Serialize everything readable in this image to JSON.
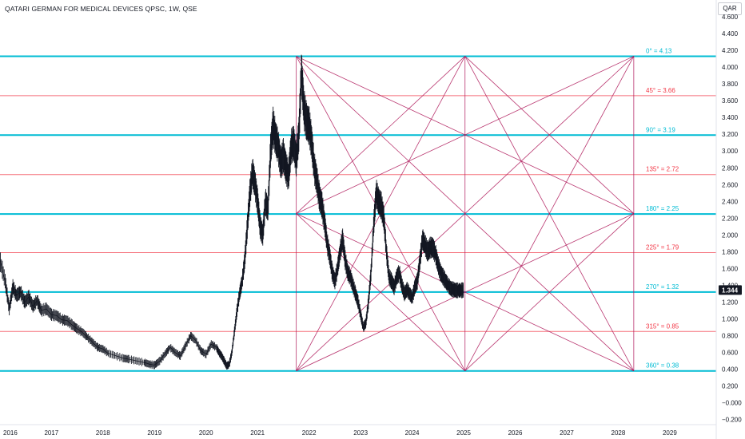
{
  "header": {
    "title": "QATARI GERMAN FOR MEDICAL DEVICES QPSC, 1W, QSE",
    "currency": "QAR"
  },
  "colors": {
    "background": "#ffffff",
    "price_bars": "#131722",
    "major_level": "#00bcd4",
    "minor_level": "#f23645",
    "fan_lines": "#ad1457",
    "grid_label": "#131722",
    "price_tag_bg": "#131722",
    "price_tag_text": "#ffffff"
  },
  "chart_data": {
    "type": "line",
    "title": "QATARI GERMAN FOR MEDICAL DEVICES QPSC, 1W, QSE",
    "xlabel": "",
    "ylabel": "",
    "x_ticks": [
      "2016",
      "2017",
      "2018",
      "2019",
      "2020",
      "2021",
      "2022",
      "2023",
      "2024",
      "2025",
      "2026",
      "2027",
      "2028",
      "2029"
    ],
    "y_ticks": [
      "4.600",
      "4.400",
      "4.200",
      "4.000",
      "3.800",
      "3.600",
      "3.400",
      "3.200",
      "3.000",
      "2.800",
      "2.600",
      "2.400",
      "2.200",
      "2.000",
      "1.800",
      "1.600",
      "1.400",
      "1.200",
      "1.000",
      "0.800",
      "0.600",
      "0.400",
      "0.200",
      "−0.000",
      "−0.200"
    ],
    "xlim": [
      2016.0,
      2029.9
    ],
    "ylim": [
      -0.26,
      4.8
    ],
    "grid": false,
    "last_price": "1.344",
    "gann_levels": [
      {
        "label": "0° = 4.13",
        "value": 4.13,
        "major": true
      },
      {
        "label": "45° = 3.66",
        "value": 3.66,
        "major": false
      },
      {
        "label": "90° = 3.19",
        "value": 3.19,
        "major": true
      },
      {
        "label": "135° = 2.72",
        "value": 2.72,
        "major": false
      },
      {
        "label": "180° = 2.25",
        "value": 2.25,
        "major": true
      },
      {
        "label": "225° = 1.79",
        "value": 1.79,
        "major": false
      },
      {
        "label": "270° = 1.32",
        "value": 1.32,
        "major": true
      },
      {
        "label": "315° = 0.85",
        "value": 0.85,
        "major": false
      },
      {
        "label": "360° = 0.38",
        "value": 0.38,
        "major": true
      }
    ],
    "gann_box": {
      "x_start": 2021.75,
      "x_end": 2028.3,
      "y_low": 0.38,
      "y_high": 4.13
    },
    "series": [
      {
        "type": "line",
        "x": [
          2015.99,
          2016.1,
          2016.18,
          2016.25,
          2016.32,
          2016.4,
          2016.48,
          2016.56,
          2016.64,
          2016.72,
          2016.8,
          2016.9,
          2017.0,
          2017.1,
          2017.2,
          2017.3,
          2017.4,
          2017.5,
          2017.6,
          2017.7,
          2017.8,
          2017.9,
          2018.0,
          2018.1,
          2018.25,
          2018.4,
          2018.5,
          2018.65,
          2018.8,
          2018.9,
          2019.0,
          2019.1,
          2019.2,
          2019.3,
          2019.4,
          2019.5,
          2019.6,
          2019.7,
          2019.8,
          2019.9,
          2020.0,
          2020.1,
          2020.2,
          2020.25,
          2020.3,
          2020.35,
          2020.4,
          2020.45,
          2020.5,
          2020.55,
          2020.6,
          2020.65,
          2020.7,
          2020.75,
          2020.8,
          2020.85,
          2020.9,
          2020.95,
          2021.0,
          2021.05,
          2021.1,
          2021.15,
          2021.2,
          2021.25,
          2021.3,
          2021.35,
          2021.4,
          2021.45,
          2021.5,
          2021.55,
          2021.6,
          2021.65,
          2021.7,
          2021.75,
          2021.8,
          2021.85,
          2021.9,
          2021.95,
          2022.0,
          2022.05,
          2022.1,
          2022.15,
          2022.2,
          2022.25,
          2022.3,
          2022.35,
          2022.4,
          2022.45,
          2022.5,
          2022.55,
          2022.6,
          2022.65,
          2022.7,
          2022.75,
          2022.8,
          2022.85,
          2022.9,
          2022.95,
          2023.0,
          2023.05,
          2023.1,
          2023.15,
          2023.2,
          2023.25,
          2023.3,
          2023.35,
          2023.4,
          2023.45,
          2023.5,
          2023.55,
          2023.6,
          2023.65,
          2023.7,
          2023.75,
          2023.8,
          2023.85,
          2023.9,
          2023.95,
          2024.0,
          2024.05,
          2024.1,
          2024.15,
          2024.2,
          2024.25,
          2024.3,
          2024.35,
          2024.4,
          2024.45,
          2024.5,
          2024.55,
          2024.6,
          2024.65,
          2024.7,
          2024.75,
          2024.8,
          2024.85,
          2024.9,
          2024.95,
          2025.0
        ],
        "values": [
          1.72,
          1.45,
          1.12,
          1.38,
          1.28,
          1.32,
          1.2,
          1.26,
          1.15,
          1.22,
          1.1,
          1.12,
          1.05,
          1.04,
          0.99,
          0.98,
          0.93,
          0.88,
          0.84,
          0.78,
          0.72,
          0.66,
          0.64,
          0.59,
          0.56,
          0.53,
          0.52,
          0.5,
          0.48,
          0.46,
          0.45,
          0.5,
          0.58,
          0.66,
          0.6,
          0.56,
          0.68,
          0.8,
          0.74,
          0.62,
          0.58,
          0.7,
          0.66,
          0.6,
          0.56,
          0.5,
          0.44,
          0.46,
          0.6,
          0.85,
          1.1,
          1.3,
          1.45,
          1.7,
          2.1,
          2.5,
          2.75,
          2.6,
          2.4,
          2.1,
          2.0,
          2.4,
          2.3,
          3.0,
          3.3,
          3.15,
          3.05,
          2.85,
          2.95,
          2.8,
          2.7,
          3.05,
          3.1,
          2.9,
          3.2,
          3.95,
          3.5,
          3.35,
          3.3,
          3.1,
          2.8,
          2.65,
          2.45,
          2.35,
          2.15,
          1.9,
          1.75,
          1.55,
          1.45,
          1.6,
          1.8,
          1.95,
          1.7,
          1.55,
          1.5,
          1.4,
          1.3,
          1.2,
          1.05,
          0.9,
          0.95,
          1.2,
          1.55,
          2.1,
          2.5,
          2.4,
          2.35,
          2.2,
          1.8,
          1.5,
          1.45,
          1.38,
          1.5,
          1.55,
          1.4,
          1.3,
          1.35,
          1.3,
          1.25,
          1.38,
          1.45,
          1.7,
          1.95,
          1.88,
          1.8,
          1.85,
          1.85,
          1.78,
          1.65,
          1.55,
          1.5,
          1.45,
          1.4,
          1.36,
          1.35,
          1.34,
          1.34,
          1.34,
          1.344
        ]
      }
    ]
  }
}
